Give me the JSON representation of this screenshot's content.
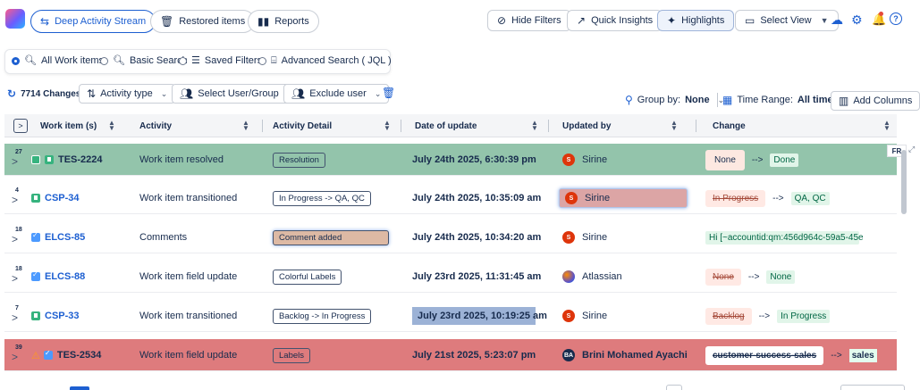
{
  "toolbar": {
    "deep_activity": "Deep Activity Stream",
    "restored": "Restored items",
    "reports": "Reports",
    "hide_filters": "Hide Filters",
    "quick_insights": "Quick Insights",
    "highlights": "Highlights",
    "select_view": "Select View"
  },
  "search": {
    "all": "All Work items",
    "basic": "Basic Search",
    "saved": "Saved Filters",
    "advanced": "Advanced Search ( JQL )"
  },
  "filters": {
    "changes": "7714 Changes",
    "activity_type": "Activity type",
    "select_user": "Select User/Group",
    "exclude_user": "Exclude user",
    "group_by_label": "Group by:",
    "group_by_value": "None",
    "time_range_label": "Time Range:",
    "time_range_value": "All time",
    "add_columns": "Add Columns"
  },
  "side_tag": "FR",
  "columns": [
    "Work item (s)",
    "Activity",
    "Activity Detail",
    "Date of update",
    "Updated by",
    "Change"
  ],
  "colors": {
    "accent": "#1d5fd1",
    "resolved_row": "#93c4ab",
    "highlight_row": "#de7b7d"
  },
  "rows": [
    {
      "count": "27",
      "key": "TES-2224",
      "activity": "Work item resolved",
      "detail": "Resolution",
      "date": "July 24th 2025, 6:30:39 pm",
      "user": "Sirine",
      "avatar": "S",
      "old": "None",
      "new": "Done"
    },
    {
      "count": "4",
      "key": "CSP-34",
      "activity": "Work item transitioned",
      "detail": "In Progress -> QA, QC",
      "date": "July 24th 2025, 10:35:09 am",
      "user": "Sirine",
      "avatar": "S",
      "old": "In Progress",
      "new": "QA, QC"
    },
    {
      "count": "18",
      "key": "ELCS-85",
      "activity": "Comments",
      "detail": "Comment added",
      "date": "July 24th 2025, 10:34:20 am",
      "user": "Sirine",
      "avatar": "S",
      "comment": "Hi [~accountid:qm:456d964c-59a5-45e"
    },
    {
      "count": "18",
      "key": "ELCS-88",
      "activity": "Work item field update",
      "detail": "Colorful Labels",
      "date": "July 23rd 2025, 11:31:45 am",
      "user": "Atlassian",
      "old": "None",
      "new": "None"
    },
    {
      "count": "7",
      "key": "CSP-33",
      "activity": "Work item transitioned",
      "detail": "Backlog -> In Progress",
      "date": "July 23rd 2025, 10:19:25 am",
      "user": "Sirine",
      "avatar": "S",
      "old": "Backlog",
      "new": "In Progress"
    },
    {
      "count": "39",
      "key": "TES-2534",
      "activity": "Work item field update",
      "detail": "Labels",
      "date": "July 21st 2025, 5:23:07 pm",
      "user": "Brini Mohamed Ayachi",
      "avatar": "BA",
      "old": "customer-success-sales",
      "new": "sales"
    }
  ]
}
